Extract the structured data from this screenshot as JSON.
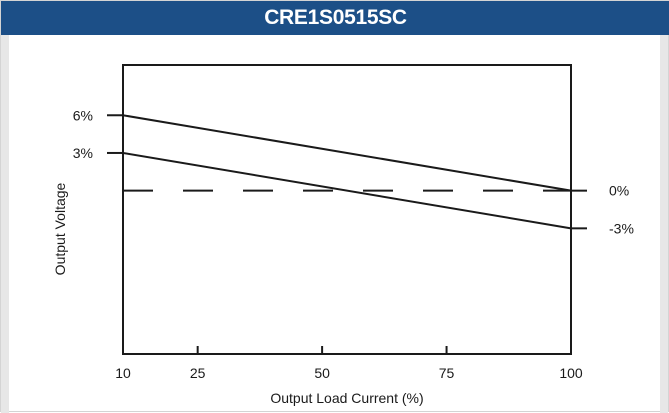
{
  "chart_data": {
    "type": "line",
    "title": "CRE1S0515SC",
    "xlabel": "Output Load Current (%)",
    "ylabel": "Output Voltage",
    "x_ticks": [
      10,
      25,
      50,
      75,
      100
    ],
    "y_ticks_left": [
      {
        "label": "6%",
        "value": 6
      },
      {
        "label": "3%",
        "value": 3
      }
    ],
    "y_ticks_right": [
      {
        "label": "0%",
        "value": 0
      },
      {
        "label": "-3%",
        "value": -3
      }
    ],
    "xlim": [
      10,
      100
    ],
    "ylim": [
      -13,
      10
    ],
    "series": [
      {
        "x": [
          10,
          100
        ],
        "values": [
          6,
          0
        ],
        "style": "solid"
      },
      {
        "x": [
          10,
          100
        ],
        "values": [
          3,
          -3
        ],
        "style": "solid"
      },
      {
        "x": [
          10,
          100
        ],
        "values": [
          0,
          0
        ],
        "style": "dashed"
      }
    ],
    "grid": false,
    "colors": {
      "title_bar": "#1c4f87",
      "title_text": "#ffffff",
      "lines": "#1a1a1a",
      "side_strip": "#e7e7e7"
    }
  }
}
